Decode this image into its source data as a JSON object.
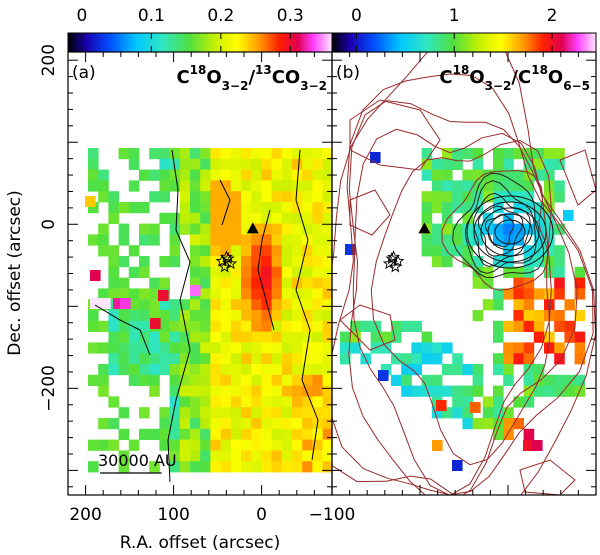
{
  "figure": {
    "x_axis_label": "R.A. offset (arcsec)",
    "y_axis_label": "Dec. offset (arcsec)",
    "scale_bar_label": "30000 AU",
    "scale_bar_arcsec": 70
  },
  "chart_data": [
    {
      "type": "heatmap",
      "panel_label": "(a)",
      "ratio_label": {
        "num_sup": "18",
        "num_base": "O",
        "num_trans": "3−2",
        "den_sup": "13",
        "den_base": "CO",
        "den_trans": "3−2",
        "prefix": "C"
      },
      "colorbar": {
        "min": -0.02,
        "max": 0.36,
        "ticks": [
          "0",
          "0.1",
          "0.2",
          "0.3"
        ],
        "tick_values": [
          0,
          0.1,
          0.2,
          0.3
        ]
      },
      "xlim": [
        220,
        -80
      ],
      "ylim": [
        -330,
        210
      ],
      "x_ticks": [
        200,
        100,
        0
      ],
      "x_tick_labels": [
        "200",
        "100",
        "0"
      ],
      "y_ticks": [
        200,
        0,
        -200
      ],
      "y_tick_labels": [
        "200",
        "0",
        "−200"
      ],
      "markers": {
        "triangle": [
          10,
          -5
        ],
        "stars": [
          [
            40,
            -40
          ],
          [
            45,
            -45
          ],
          [
            35,
            -48
          ],
          [
            42,
            -52
          ],
          [
            38,
            -42
          ]
        ]
      }
    },
    {
      "type": "heatmap",
      "panel_label": "(b)",
      "ratio_label": {
        "num_sup": "18",
        "num_base": "O",
        "num_trans": "3−2",
        "den_sup": "18",
        "den_base": "O",
        "den_trans": "6−5",
        "prefix": "C"
      },
      "colorbar": {
        "min": -0.25,
        "max": 2.45,
        "ticks": [
          "0",
          "1",
          "2"
        ],
        "tick_values": [
          0,
          1,
          2
        ]
      },
      "xlim": [
        -100,
        -400
      ],
      "ylim": [
        -330,
        210
      ],
      "markers": {
        "triangle": [
          -205,
          -5
        ],
        "stars": [
          [
            -170,
            -40
          ],
          [
            -175,
            -45
          ],
          [
            -165,
            -48
          ],
          [
            -172,
            -52
          ],
          [
            -168,
            -42
          ]
        ]
      }
    }
  ],
  "shared_x_tick_label": "−100"
}
